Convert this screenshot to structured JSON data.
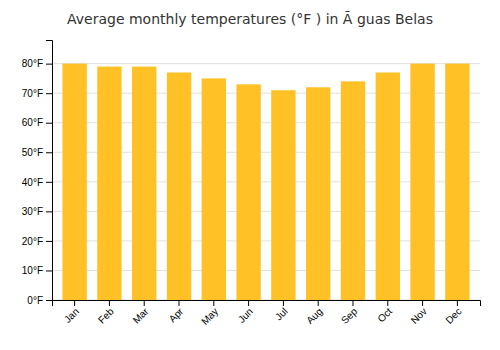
{
  "chart_data": {
    "type": "bar",
    "title": "Average monthly temperatures (°F ) in Ã guas Belas",
    "categories": [
      "Jan",
      "Feb",
      "Mar",
      "Apr",
      "May",
      "Jun",
      "Jul",
      "Aug",
      "Sep",
      "Oct",
      "Nov",
      "Dec"
    ],
    "values": [
      80,
      79,
      79,
      77,
      75,
      73,
      71,
      72,
      74,
      77,
      80,
      80
    ],
    "color": "#FFC125",
    "ylim": [
      0,
      88
    ],
    "yticks": [
      {
        "value": 0,
        "label": "0°F"
      },
      {
        "value": 10,
        "label": "10°F"
      },
      {
        "value": 20,
        "label": "20°F"
      },
      {
        "value": 30,
        "label": "30°F"
      },
      {
        "value": 40,
        "label": "40°F"
      },
      {
        "value": 50,
        "label": "50°F"
      },
      {
        "value": 60,
        "label": "60°F"
      },
      {
        "value": 70,
        "label": "70°F"
      },
      {
        "value": 80,
        "label": "80°F"
      }
    ],
    "grid": true
  }
}
